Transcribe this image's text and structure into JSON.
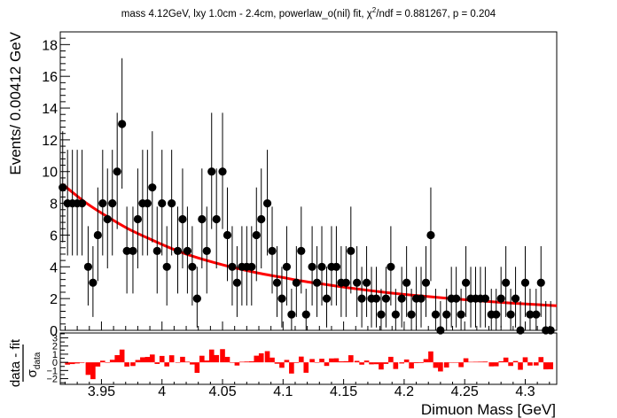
{
  "chart_data": {
    "type": "scatter",
    "title": "mass 4.12GeV, lxy 1.0cm - 2.4cm, powerlaw_o(nil) fit, χ²/ndf = 0.881267, p = 0.204",
    "title_parts": {
      "pre": "mass 4.12GeV, lxy 1.0cm - 2.4cm, powerlaw_o(nil) fit, χ",
      "sup": "2",
      "post": "/ndf = 0.881267, p = 0.204"
    },
    "xlabel": "Dimuon Mass [GeV]",
    "ylabel": "Events/ 0.00412 GeV",
    "pull_ylabel": {
      "num": "data - fit",
      "den_sym": "σ",
      "den_sub": "data"
    },
    "xlim": [
      3.916,
      4.326
    ],
    "ylim": [
      0,
      18.8
    ],
    "pull_ylim": [
      -2.7,
      3.6
    ],
    "x_ticks": [
      3.95,
      4.0,
      4.05,
      4.1,
      4.15,
      4.2,
      4.25,
      4.3
    ],
    "x_tick_labels": [
      "3.95",
      "4",
      "4.05",
      "4.1",
      "4.15",
      "4.2",
      "4.25",
      "4.3"
    ],
    "y_ticks": [
      0,
      2,
      4,
      6,
      8,
      10,
      12,
      14,
      16,
      18
    ],
    "y_tick_labels": [
      "0",
      "2",
      "4",
      "6",
      "8",
      "10",
      "12",
      "14",
      "16",
      "18"
    ],
    "pull_ticks": [
      -2,
      -1,
      0,
      1,
      2,
      3
    ],
    "pull_tick_labels": [
      "−2",
      "−1",
      "0",
      "1",
      "2",
      "3"
    ],
    "grid": false,
    "colors": {
      "data": "#000000",
      "fit": "#ff0000",
      "pull": "#ff0000"
    },
    "bin_width": 0.00412,
    "series": [
      {
        "kind": "data-points-with-poisson-errors",
        "x": [
          3.918,
          3.922,
          3.926,
          3.93,
          3.934,
          3.939,
          3.943,
          3.947,
          3.951,
          3.955,
          3.959,
          3.963,
          3.967,
          3.971,
          3.976,
          3.98,
          3.984,
          3.988,
          3.992,
          3.996,
          4.0,
          4.004,
          4.008,
          4.013,
          4.017,
          4.021,
          4.025,
          4.029,
          4.033,
          4.037,
          4.041,
          4.045,
          4.05,
          4.054,
          4.058,
          4.062,
          4.066,
          4.07,
          4.074,
          4.078,
          4.082,
          4.087,
          4.091,
          4.095,
          4.099,
          4.103,
          4.107,
          4.111,
          4.115,
          4.119,
          4.124,
          4.128,
          4.132,
          4.136,
          4.14,
          4.144,
          4.148,
          4.152,
          4.156,
          4.161,
          4.165,
          4.169,
          4.173,
          4.177,
          4.181,
          4.185,
          4.189,
          4.193,
          4.198,
          4.202,
          4.206,
          4.21,
          4.214,
          4.218,
          4.222,
          4.226,
          4.23,
          4.235,
          4.239,
          4.243,
          4.247,
          4.251,
          4.255,
          4.259,
          4.263,
          4.267,
          4.272,
          4.276,
          4.28,
          4.284,
          4.288,
          4.292,
          4.296,
          4.3,
          4.304,
          4.309,
          4.313,
          4.317,
          4.321
        ],
        "y": [
          9,
          8,
          8,
          8,
          8,
          4,
          3,
          6,
          8,
          7,
          8,
          10,
          13,
          5,
          5,
          7,
          8,
          8,
          9,
          5,
          8,
          4,
          8,
          5,
          7,
          5,
          4,
          2,
          7,
          5,
          10,
          7,
          10,
          6,
          4,
          3,
          4,
          4,
          4,
          6,
          7,
          8,
          5,
          3,
          2,
          4,
          1,
          3,
          5,
          1,
          4,
          3,
          4,
          2,
          4,
          4,
          3,
          3,
          5,
          3,
          2,
          3,
          2,
          2,
          1,
          2,
          4,
          1,
          2,
          3,
          1,
          2,
          2,
          3,
          6,
          1,
          0,
          1,
          2,
          2,
          1,
          3,
          2,
          2,
          2,
          2,
          1,
          1,
          2,
          3,
          1,
          2,
          0,
          3,
          1,
          1,
          3,
          0,
          0
        ]
      },
      {
        "kind": "fit-curve",
        "name": "powerlaw_o(nil) fit",
        "x": [
          3.918,
          3.936,
          3.954,
          3.972,
          3.99,
          4.008,
          4.026,
          4.044,
          4.062,
          4.08,
          4.098,
          4.116,
          4.134,
          4.152,
          4.17,
          4.188,
          4.206,
          4.224,
          4.242,
          4.26,
          4.278,
          4.296,
          4.314,
          4.326
        ],
        "y": [
          9.2,
          8.1,
          7.2,
          6.4,
          5.75,
          5.15,
          4.65,
          4.25,
          3.9,
          3.6,
          3.35,
          3.1,
          2.9,
          2.7,
          2.52,
          2.36,
          2.22,
          2.1,
          1.98,
          1.87,
          1.77,
          1.68,
          1.6,
          1.55
        ]
      }
    ]
  }
}
